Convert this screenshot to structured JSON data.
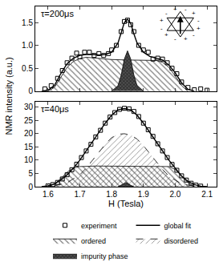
{
  "chart_data": {
    "type": "scatter",
    "xlabel": "H (Tesla)",
    "ylabel": "NMR intensity (a.u.)",
    "xlim": [
      1.56,
      2.13
    ],
    "xticks": [
      1.6,
      1.7,
      1.8,
      1.9,
      {
        "value": 2,
        "label": "2.0"
      },
      2.1
    ],
    "grid": false,
    "panels": [
      {
        "title": "τ=200μs",
        "ylim": [
          0,
          1.85
        ],
        "yticks": [
          0,
          0.5,
          {
            "value": 1,
            "label": "1.0"
          },
          1.5
        ],
        "tick_labels": "y",
        "series": [
          {
            "name": "experiment",
            "type": "scatter",
            "marker": "square-open",
            "color": "#000000",
            "x": [
              1.59,
              1.61,
              1.63,
              1.645,
              1.66,
              1.675,
              1.69,
              1.7,
              1.715,
              1.73,
              1.745,
              1.76,
              1.775,
              1.79,
              1.8,
              1.815,
              1.83,
              1.84,
              1.85,
              1.86,
              1.87,
              1.885,
              1.9,
              1.915,
              1.93,
              1.945,
              1.96,
              1.975,
              1.99,
              2.005,
              2.02,
              2.04,
              2.06,
              2.08,
              2.1
            ],
            "values": [
              0.05,
              0.12,
              0.28,
              0.45,
              0.62,
              0.72,
              0.83,
              0.75,
              0.85,
              0.85,
              0.78,
              0.82,
              0.78,
              0.82,
              0.9,
              1.0,
              1.3,
              1.52,
              1.55,
              1.45,
              1.3,
              1.0,
              0.9,
              0.85,
              0.7,
              0.72,
              0.7,
              0.62,
              0.5,
              0.38,
              0.2,
              0.08,
              0.03,
              0.05,
              0.02
            ]
          },
          {
            "name": "global fit",
            "type": "line",
            "line_style": "solid",
            "color": "#000000",
            "x": [
              1.58,
              1.6,
              1.62,
              1.64,
              1.66,
              1.68,
              1.7,
              1.72,
              1.74,
              1.76,
              1.78,
              1.8,
              1.82,
              1.83,
              1.84,
              1.85,
              1.86,
              1.87,
              1.88,
              1.9,
              1.92,
              1.94,
              1.96,
              1.98,
              2.0,
              2.02,
              2.04,
              2.06
            ],
            "values": [
              0,
              0.02,
              0.12,
              0.38,
              0.6,
              0.72,
              0.78,
              0.8,
              0.8,
              0.79,
              0.8,
              0.85,
              1.05,
              1.28,
              1.5,
              1.57,
              1.48,
              1.25,
              1.05,
              0.85,
              0.76,
              0.72,
              0.68,
              0.57,
              0.4,
              0.18,
              0.04,
              0
            ]
          },
          {
            "name": "ordered",
            "type": "area",
            "marker": "backslash-hatch",
            "line_style": "solid",
            "color": "#000000",
            "x": [
              1.6,
              1.62,
              1.64,
              1.66,
              1.68,
              1.7,
              1.72,
              1.74,
              1.76,
              1.8,
              1.85,
              1.9,
              1.94,
              1.96,
              1.98,
              2.0,
              2.02,
              2.04
            ],
            "values": [
              0,
              0.08,
              0.3,
              0.52,
              0.65,
              0.71,
              0.74,
              0.73,
              0.71,
              0.69,
              0.68,
              0.68,
              0.67,
              0.63,
              0.52,
              0.33,
              0.12,
              0
            ]
          },
          {
            "name": "impurity phase",
            "type": "area",
            "marker": "cross-hatch",
            "line_style": "solid",
            "color": "#000000",
            "x": [
              1.8,
              1.82,
              1.83,
              1.84,
              1.85,
              1.86,
              1.87,
              1.88,
              1.9
            ],
            "values": [
              0,
              0.12,
              0.35,
              0.7,
              0.88,
              0.7,
              0.35,
              0.12,
              0
            ]
          }
        ],
        "inset": {
          "labels": [
            "+",
            "-",
            "+",
            "-",
            "+",
            "-",
            "+",
            "-",
            "+",
            "-",
            "+",
            "-"
          ]
        }
      },
      {
        "title": "τ=40μs",
        "ylim": [
          0,
          32
        ],
        "yticks": [
          0,
          5,
          10,
          15,
          20,
          25,
          30
        ],
        "legend": "bottom",
        "series": [
          {
            "name": "experiment",
            "type": "scatter",
            "marker": "square-open",
            "color": "#000000",
            "x": [
              1.6,
              1.615,
              1.63,
              1.645,
              1.66,
              1.675,
              1.69,
              1.705,
              1.72,
              1.735,
              1.75,
              1.765,
              1.78,
              1.795,
              1.81,
              1.825,
              1.84,
              1.855,
              1.87,
              1.885,
              1.9,
              1.915,
              1.93,
              1.945,
              1.96,
              1.975,
              1.99,
              2.005,
              2.02,
              2.035,
              2.05,
              2.065,
              2.08
            ],
            "values": [
              0.3,
              0.8,
              1.6,
              2.9,
              4.5,
              6.4,
              8.5,
              11,
              13.5,
              16,
              18.8,
              21.3,
              24,
              26.3,
              28,
              29.2,
              29.6,
              29.4,
              28.4,
              26.5,
              24,
              21.5,
              19,
              16.2,
              13.5,
              11,
              8.4,
              6.2,
              4.1,
              2.5,
              1.3,
              0.6,
              0.2
            ]
          },
          {
            "name": "global fit",
            "type": "line",
            "line_style": "solid",
            "color": "#000000",
            "x": [
              1.58,
              1.6,
              1.62,
              1.64,
              1.66,
              1.68,
              1.7,
              1.72,
              1.74,
              1.76,
              1.78,
              1.8,
              1.82,
              1.84,
              1.86,
              1.88,
              1.9,
              1.92,
              1.94,
              1.96,
              1.98,
              2.0,
              2.02,
              2.04,
              2.06,
              2.08,
              2.1
            ],
            "values": [
              0,
              0.3,
              1,
              2.5,
              4.5,
              7,
              10,
              13.5,
              17,
              20.5,
              24,
              27,
              29,
              29.5,
              29,
              27,
              24,
              20.5,
              17,
              13.5,
              10,
              7,
              4,
              2,
              0.8,
              0.2,
              0
            ]
          },
          {
            "name": "ordered",
            "type": "area",
            "marker": "backslash-hatch",
            "line_style": "solid",
            "color": "#000000",
            "x": [
              1.6,
              1.62,
              1.64,
              1.66,
              1.68,
              1.7,
              1.75,
              1.8,
              1.85,
              1.9,
              1.95,
              1.98,
              2.0,
              2.02,
              2.04,
              2.06
            ],
            "values": [
              0,
              1,
              3,
              5.5,
              7,
              7.6,
              7.8,
              7.8,
              7.8,
              7.8,
              7.8,
              7.6,
              6.5,
              4,
              1.5,
              0
            ]
          },
          {
            "name": "disordered",
            "type": "area",
            "marker": "slash-hatch",
            "line_style": "dashed",
            "color": "#000000",
            "x": [
              1.62,
              1.66,
              1.7,
              1.72,
              1.74,
              1.76,
              1.78,
              1.8,
              1.82,
              1.84,
              1.86,
              1.88,
              1.9,
              1.92,
              1.94,
              1.96,
              1.98,
              2.02,
              2.06
            ],
            "values": [
              0.3,
              1.5,
              4.5,
              7,
              10,
              13,
              16,
              18.5,
              19.8,
              20,
              19.5,
              18,
              15.5,
              12.5,
              9.5,
              6.5,
              4,
              1,
              0.2
            ]
          },
          {
            "name": "impurity phase",
            "type": "area",
            "marker": "cross-hatch",
            "line_style": "solid",
            "color": "#000000",
            "x": [
              1.82,
              1.83,
              1.84,
              1.845,
              1.85,
              1.86,
              1.87
            ],
            "values": [
              0,
              0.5,
              1.2,
              1.6,
              1.2,
              0.5,
              0
            ]
          }
        ]
      }
    ]
  }
}
